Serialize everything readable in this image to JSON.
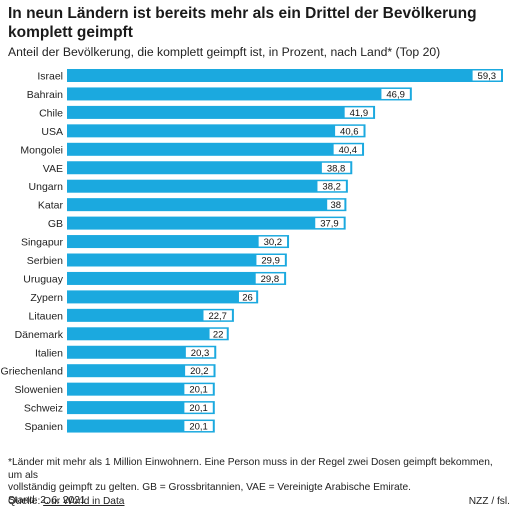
{
  "header": {
    "title": "In neun Ländern ist bereits mehr als ein Drittel der Bevölkerung komplett geimpft",
    "subtitle": "Anteil der Bevölkerung, die komplett geimpft ist, in Prozent, nach Land* (Top 20)"
  },
  "footer": {
    "footnote_line1": "*Länder mit mehr als 1 Million Einwohnern. Eine Person muss in der Regel zwei Dosen geimpft bekommen, um als",
    "footnote_line2": "vollständig geimpft zu gelten. GB = Grossbritannien, VAE = Vereinigte Arabische Emirate.",
    "date": "Stand: 2. 6. 2021",
    "source_label": "Quelle:",
    "source_link": "Our World in Data",
    "credit": "NZZ / fsl."
  },
  "colors": {
    "bar": "#1ba9df",
    "label_bg": "#ffffff"
  },
  "chart_data": {
    "type": "bar",
    "orientation": "horizontal",
    "categories": [
      "Israel",
      "Bahrain",
      "Chile",
      "USA",
      "Mongolei",
      "VAE",
      "Ungarn",
      "Katar",
      "GB",
      "Singapur",
      "Serbien",
      "Uruguay",
      "Zypern",
      "Litauen",
      "Dänemark",
      "Italien",
      "Griechenland",
      "Slowenien",
      "Schweiz",
      "Spanien"
    ],
    "values": [
      59.3,
      46.9,
      41.9,
      40.6,
      40.4,
      38.8,
      38.2,
      38,
      37.9,
      30.2,
      29.9,
      29.8,
      26,
      22.7,
      22,
      20.3,
      20.2,
      20.1,
      20.1,
      20.1
    ],
    "value_labels": [
      "59,3",
      "46,9",
      "41,9",
      "40,6",
      "40,4",
      "38,8",
      "38,2",
      "38",
      "37,9",
      "30,2",
      "29,9",
      "29,8",
      "26",
      "22,7",
      "22",
      "20,3",
      "20,2",
      "20,1",
      "20,1",
      "20,1"
    ],
    "xlim": [
      0,
      59.3
    ],
    "grid": false,
    "legend": "none"
  }
}
